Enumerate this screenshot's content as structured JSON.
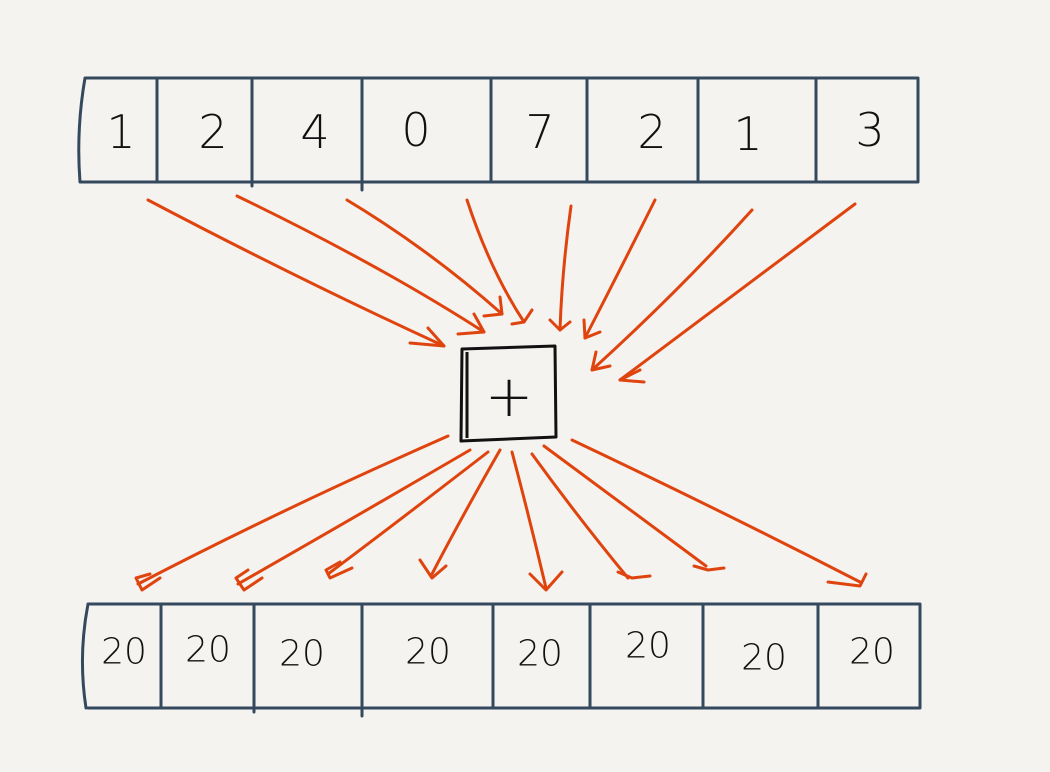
{
  "input_array": {
    "values": [
      "1",
      "2",
      "4",
      "0",
      "7",
      "2",
      "1",
      "3"
    ]
  },
  "operator": {
    "symbol": "+"
  },
  "output_array": {
    "values": [
      "20",
      "20",
      "20",
      "20",
      "20",
      "20",
      "20",
      "20"
    ]
  },
  "colors": {
    "cell_border": "#34495e",
    "arrow": "#e0440e",
    "operator_border": "#111111",
    "text": "#111111",
    "background": "#f5f3f0"
  }
}
